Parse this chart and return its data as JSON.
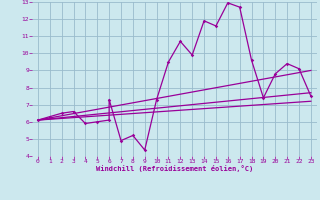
{
  "title": "",
  "xlabel": "Windchill (Refroidissement éolien,°C)",
  "bg_color": "#cce8ee",
  "grid_color": "#99bbcc",
  "line_color": "#990099",
  "xlim": [
    -0.5,
    23.5
  ],
  "ylim": [
    4,
    13
  ],
  "xticks": [
    0,
    1,
    2,
    3,
    4,
    5,
    6,
    7,
    8,
    9,
    10,
    11,
    12,
    13,
    14,
    15,
    16,
    17,
    18,
    19,
    20,
    21,
    22,
    23
  ],
  "yticks": [
    4,
    5,
    6,
    7,
    8,
    9,
    10,
    11,
    12,
    13
  ],
  "series1_x": [
    0,
    1,
    2,
    3,
    4,
    5,
    6,
    6,
    7,
    8,
    9,
    10,
    11,
    12,
    13,
    14,
    15,
    16,
    17,
    18,
    19,
    20,
    21,
    22,
    23
  ],
  "series1_y": [
    6.1,
    6.3,
    6.5,
    6.6,
    5.9,
    6.0,
    6.1,
    7.3,
    4.9,
    5.2,
    4.35,
    7.3,
    9.5,
    10.7,
    9.9,
    11.9,
    11.6,
    12.95,
    12.7,
    9.6,
    7.4,
    8.8,
    9.4,
    9.1,
    7.5
  ],
  "series2_x": [
    0,
    23
  ],
  "series2_y": [
    6.1,
    9.0
  ],
  "series3_x": [
    0,
    23
  ],
  "series3_y": [
    6.1,
    7.7
  ],
  "series4_x": [
    0,
    23
  ],
  "series4_y": [
    6.1,
    7.2
  ]
}
